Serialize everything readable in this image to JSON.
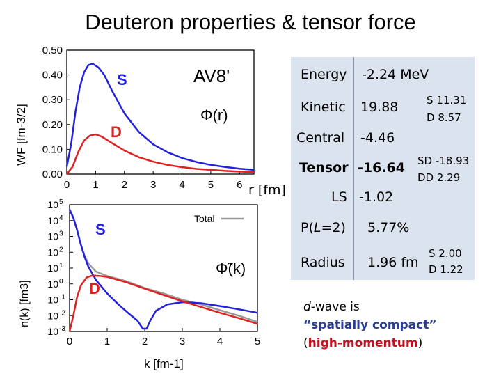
{
  "title": "Deuteron properties & tensor force",
  "colors": {
    "s_wave": "#2222dd",
    "d_wave": "#dd2222",
    "total": "#999999",
    "panel_bg": "#dbe3ef",
    "note_blue": "#2a3f8f",
    "note_red": "#c0121f"
  },
  "chart_data": [
    {
      "type": "line",
      "ylabel": "WF [fm-3/2]",
      "xlabel": "r [fm]",
      "xlim": [
        0,
        6.5
      ],
      "ylim": [
        0,
        0.5
      ],
      "xticks": [
        "0",
        "1",
        "2",
        "3",
        "4",
        "5",
        "6"
      ],
      "yticks": [
        "0.00",
        "0.10",
        "0.20",
        "0.30",
        "0.40",
        "0.50"
      ],
      "annotations": {
        "s": "S",
        "d": "D",
        "model": "AV8'"
      },
      "series": [
        {
          "name": "S",
          "x": [
            0.0,
            0.15,
            0.3,
            0.45,
            0.6,
            0.75,
            0.9,
            1.1,
            1.3,
            1.6,
            2.0,
            2.5,
            3.0,
            3.5,
            4.0,
            4.5,
            5.0,
            5.5,
            6.0,
            6.5
          ],
          "y": [
            0.03,
            0.12,
            0.25,
            0.35,
            0.41,
            0.44,
            0.445,
            0.43,
            0.4,
            0.33,
            0.245,
            0.17,
            0.12,
            0.088,
            0.065,
            0.049,
            0.037,
            0.029,
            0.022,
            0.017
          ]
        },
        {
          "name": "D",
          "x": [
            0.0,
            0.2,
            0.4,
            0.6,
            0.8,
            1.0,
            1.2,
            1.5,
            2.0,
            2.5,
            3.0,
            3.5,
            4.0,
            4.5,
            5.0,
            5.5,
            6.0,
            6.5
          ],
          "y": [
            0.0,
            0.03,
            0.09,
            0.135,
            0.155,
            0.16,
            0.152,
            0.13,
            0.095,
            0.068,
            0.05,
            0.037,
            0.028,
            0.021,
            0.017,
            0.013,
            0.01,
            0.008
          ]
        }
      ]
    },
    {
      "type": "line",
      "ylabel": "n(k) [fm3]",
      "xlabel": "k [fm-1]",
      "xlim": [
        0,
        5
      ],
      "ylim": [
        0.001,
        100000
      ],
      "yscale": "log",
      "xticks": [
        "0",
        "1",
        "2",
        "3",
        "4",
        "5"
      ],
      "yticks": [
        "10-3",
        "10-2",
        "10-1",
        "100",
        "101",
        "102",
        "103",
        "104",
        "105"
      ],
      "legend": "top-right",
      "annotations": {
        "s": "S",
        "d": "D"
      },
      "series": [
        {
          "name": "Total",
          "x": [
            0.0,
            0.1,
            0.2,
            0.3,
            0.4,
            0.5,
            0.7,
            1.0,
            1.5,
            2.0,
            2.5,
            3.0,
            3.5,
            4.0,
            4.5,
            5.0
          ],
          "y": [
            50000,
            15000,
            2500,
            300,
            60,
            20,
            6,
            3.2,
            1.5,
            0.55,
            0.25,
            0.1,
            0.05,
            0.022,
            0.01,
            0.004
          ]
        },
        {
          "name": "S",
          "x": [
            0.0,
            0.1,
            0.2,
            0.3,
            0.4,
            0.5,
            0.7,
            1.0,
            1.3,
            1.6,
            1.8,
            1.95,
            2.05,
            2.15,
            2.3,
            2.6,
            3.0,
            3.5,
            4.0,
            4.5,
            5.0
          ],
          "y": [
            50000,
            15000,
            2500,
            300,
            50,
            12,
            1.8,
            0.25,
            0.05,
            0.012,
            0.005,
            0.0015,
            0.0015,
            0.005,
            0.02,
            0.05,
            0.07,
            0.06,
            0.04,
            0.025,
            0.015
          ]
        },
        {
          "name": "D",
          "x": [
            0.0,
            0.1,
            0.2,
            0.3,
            0.45,
            0.6,
            0.8,
            1.0,
            1.5,
            2.0,
            2.5,
            3.0,
            3.5,
            4.0,
            4.5,
            5.0
          ],
          "y": [
            0.001,
            0.01,
            0.15,
            0.8,
            2.5,
            3.4,
            3.2,
            2.8,
            1.3,
            0.5,
            0.2,
            0.08,
            0.035,
            0.015,
            0.007,
            0.003
          ]
        }
      ]
    }
  ],
  "formulas": {
    "r_space": "Φ(r)",
    "k_space": "Φ̃(k)",
    "r_unit": "r [fm]"
  },
  "info": {
    "energy": {
      "label": "Energy",
      "value": "-2.24 MeV"
    },
    "kinetic": {
      "label": "Kinetic",
      "value": "19.88",
      "detail_s": "S 11.31",
      "detail_d": "D   8.57"
    },
    "central": {
      "label": "Central",
      "value": "-4.46"
    },
    "tensor": {
      "label": "Tensor",
      "value": "-16.64",
      "detail_sd": "SD -18.93",
      "detail_dd": "DD   2.29"
    },
    "ls": {
      "label": "LS",
      "value": "-1.02"
    },
    "pl2": {
      "label_p": "P(",
      "label_l": "L",
      "label_rest": "=2)",
      "value": "5.77%"
    },
    "radius": {
      "label": "Radius",
      "value": "1.96 fm",
      "detail_s": "S  2.00",
      "detail_d": "D  1.22"
    }
  },
  "note": {
    "line1_italic": "d",
    "line1_rest": "-wave is",
    "line2": "“spatially compact”",
    "line3_open": "(",
    "line3_bold": "high-momentum",
    "line3_close": ")"
  }
}
